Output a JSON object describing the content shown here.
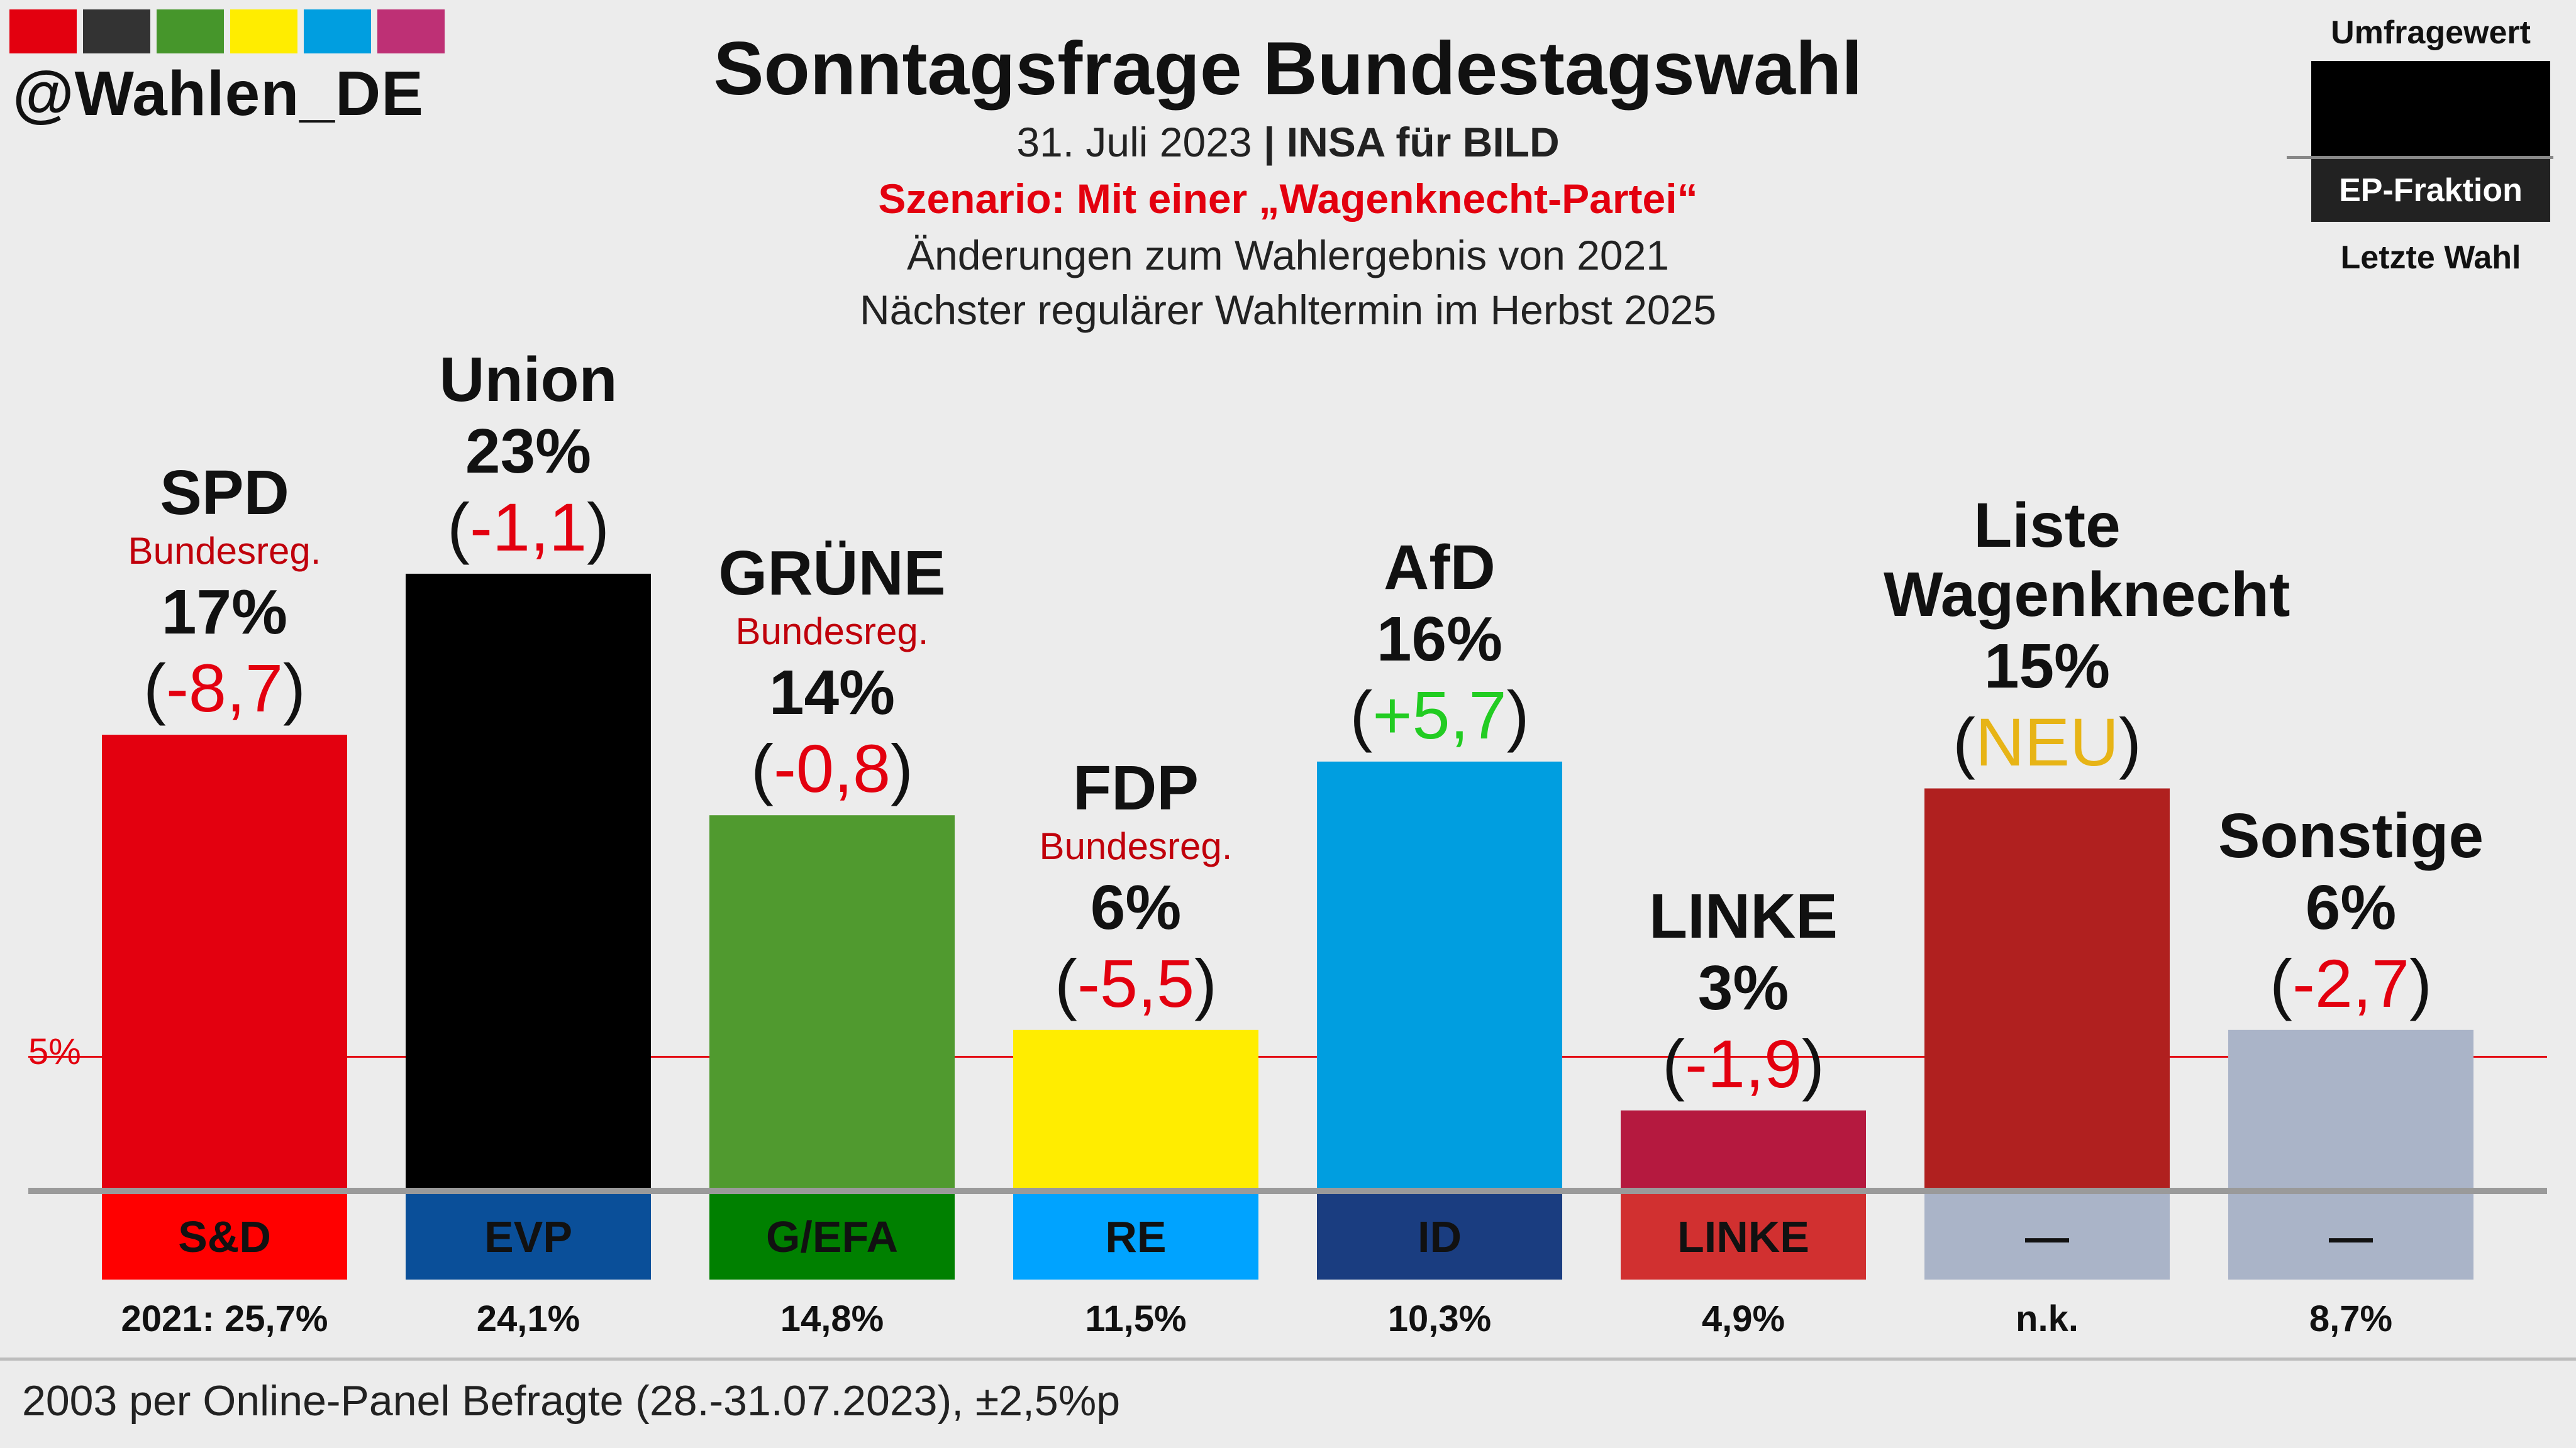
{
  "logo": {
    "handle": "@Wahlen_DE",
    "colors": [
      "#e3000f",
      "#333333",
      "#46962b",
      "#ffed00",
      "#009ee0",
      "#be3075"
    ]
  },
  "header": {
    "title": "Sonntagsfrage Bundestagswahl",
    "date": "31. Juli 2023",
    "separator": "|",
    "institute": "INSA für BILD",
    "scenario": "Szenario: Mit einer „Wagenknecht-Partei“",
    "changes_note": "Änderungen zum Wahlergebnis von 2021",
    "next_election": "Nächster regulärer Wahltermin im Herbst 2025"
  },
  "legend": {
    "top": "Umfragewert",
    "middle": "EP-Fraktion",
    "bottom": "Letzte Wahl"
  },
  "chart_data": {
    "type": "bar",
    "title": "Sonntagsfrage Bundestagswahl",
    "ylim": [
      0,
      30
    ],
    "threshold": {
      "value": 5,
      "label": "5%",
      "color": "#e3000f"
    },
    "categories": [
      "SPD",
      "Union",
      "GRÜNE",
      "FDP",
      "AfD",
      "LINKE",
      "Liste Wagenknecht",
      "Sonstige"
    ],
    "values": [
      17,
      23,
      14,
      6,
      16,
      3,
      15,
      6
    ],
    "value_labels": [
      "17%",
      "23%",
      "14%",
      "6%",
      "16%",
      "3%",
      "15%",
      "6%"
    ],
    "changes": [
      "-8,7",
      "-1,1",
      "-0,8",
      "-5,5",
      "+5,7",
      "-1,9",
      "NEU",
      "-2,7"
    ],
    "government_note": [
      "Bundesreg.",
      "",
      "Bundesreg.",
      "Bundesreg.",
      "",
      "",
      "",
      ""
    ],
    "ep_fractions": [
      "S&D",
      "EVP",
      "G/EFA",
      "RE",
      "ID",
      "LINKE",
      "—",
      "—"
    ],
    "last_election": [
      "2021: 25,7%",
      "24,1%",
      "14,8%",
      "11,5%",
      "10,3%",
      "4,9%",
      "n.k.",
      "8,7%"
    ],
    "bar_colors": [
      "#e3000f",
      "#000000",
      "#509a2f",
      "#ffed00",
      "#009ee0",
      "#b5193f",
      "#b0201f",
      "#aab4c8"
    ],
    "ep_colors": [
      "#ff0000",
      "#0a4f99",
      "#008000",
      "#00a3ff",
      "#1a3d80",
      "#d13030",
      "#aab4c8",
      "#aab4c8"
    ]
  },
  "footer": {
    "text": "2003 per Online-Panel Befragte (28.-31.07.2023), ±2,5%p"
  }
}
